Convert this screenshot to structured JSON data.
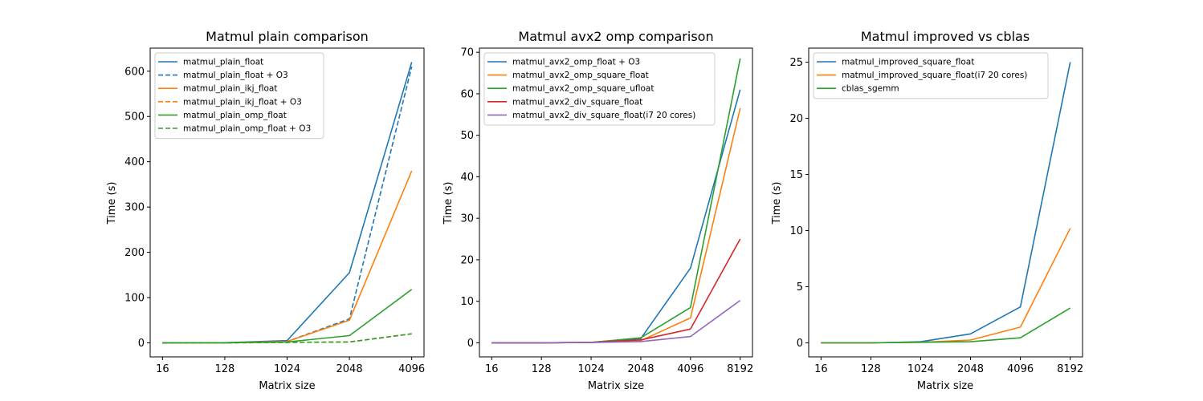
{
  "chart_data": [
    {
      "type": "line",
      "title": "Matmul plain comparison",
      "xlabel": "Matrix size",
      "ylabel": "Time (s)",
      "categories": [
        "16",
        "128",
        "1024",
        "2048",
        "4096"
      ],
      "ylim": [
        -31,
        651
      ],
      "yticks": [
        "0",
        "100",
        "200",
        "300",
        "400",
        "500",
        "600"
      ],
      "legend_position": "top-left",
      "series": [
        {
          "name": "matmul_plain_float",
          "color": "#1f77b4",
          "dashed": false,
          "values": [
            0.1,
            0.3,
            5,
            155,
            620
          ]
        },
        {
          "name": "matmul_plain_float + O3",
          "color": "#1f77b4",
          "dashed": true,
          "values": [
            0.05,
            0.2,
            3,
            53,
            610
          ]
        },
        {
          "name": "matmul_plain_ikj_float",
          "color": "#ff7f0e",
          "dashed": false,
          "values": [
            0.05,
            0.2,
            3,
            50,
            380
          ]
        },
        {
          "name": "matmul_plain_ikj_float + O3",
          "color": "#ff7f0e",
          "dashed": true,
          "values": [
            0.01,
            0.05,
            1,
            2,
            20
          ]
        },
        {
          "name": "matmul_plain_omp_float",
          "color": "#2ca02c",
          "dashed": false,
          "values": [
            0.05,
            0.1,
            2,
            16,
            118
          ]
        },
        {
          "name": "matmul_plain_omp_float + O3",
          "color": "#2ca02c",
          "dashed": true,
          "values": [
            0.01,
            0.05,
            1,
            2,
            20
          ]
        }
      ]
    },
    {
      "type": "line",
      "title": "Matmul avx2 omp comparison",
      "xlabel": "Matrix size",
      "ylabel": "Time (s)",
      "categories": [
        "16",
        "128",
        "1024",
        "2048",
        "4096",
        "8192"
      ],
      "ylim": [
        -3.4,
        71
      ],
      "yticks": [
        "0",
        "10",
        "20",
        "30",
        "40",
        "50",
        "60",
        "70"
      ],
      "legend_position": "top-left",
      "series": [
        {
          "name": "matmul_avx2_omp_float + O3",
          "color": "#1f77b4",
          "dashed": false,
          "values": [
            0,
            0,
            0.1,
            1.0,
            18,
            61
          ]
        },
        {
          "name": "matmul_avx2_omp_square_float",
          "color": "#ff7f0e",
          "dashed": false,
          "values": [
            0,
            0,
            0.1,
            0.5,
            6,
            56.5
          ]
        },
        {
          "name": "matmul_avx2_omp_square_ufloat",
          "color": "#2ca02c",
          "dashed": false,
          "values": [
            0,
            0,
            0.1,
            1.2,
            8.5,
            68.5
          ]
        },
        {
          "name": "matmul_avx2_div_square_float",
          "color": "#d62728",
          "dashed": false,
          "values": [
            0,
            0,
            0.1,
            0.7,
            3.3,
            25
          ]
        },
        {
          "name": "matmul_avx2_div_square_float(i7 20 cores)",
          "color": "#9467bd",
          "dashed": false,
          "values": [
            0,
            0,
            0.05,
            0.3,
            1.5,
            10.2
          ]
        }
      ]
    },
    {
      "type": "line",
      "title": "Matmul improved vs cblas",
      "xlabel": "Matrix size",
      "ylabel": "Time (s)",
      "categories": [
        "16",
        "128",
        "1024",
        "2048",
        "4096",
        "8192"
      ],
      "ylim": [
        -1.25,
        26.25
      ],
      "yticks": [
        "0",
        "5",
        "10",
        "15",
        "20",
        "25"
      ],
      "legend_position": "top-left",
      "series": [
        {
          "name": "matmul_improved_square_float",
          "color": "#1f77b4",
          "dashed": false,
          "values": [
            0,
            0,
            0.1,
            0.8,
            3.2,
            25
          ]
        },
        {
          "name": "matmul_improved_square_float(i7 20 cores)",
          "color": "#ff7f0e",
          "dashed": false,
          "values": [
            0,
            0,
            0.05,
            0.25,
            1.4,
            10.2
          ]
        },
        {
          "name": "cblas_sgemm",
          "color": "#2ca02c",
          "dashed": false,
          "values": [
            0,
            0,
            0.05,
            0.1,
            0.45,
            3.1
          ]
        }
      ]
    }
  ]
}
